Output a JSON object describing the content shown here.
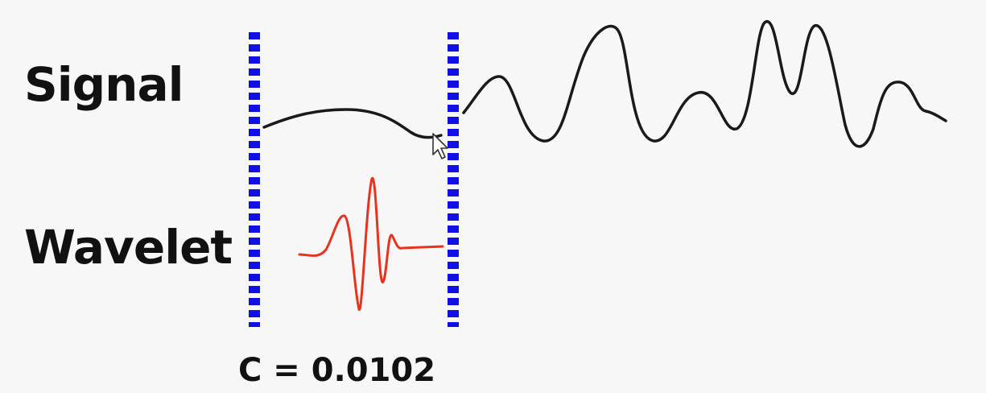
{
  "labels": {
    "signal": "Signal",
    "wavelet": "Wavelet",
    "coefficient": "C = 0.0102"
  },
  "colors": {
    "signal": "#1a1a1a",
    "wavelet": "#e8321e",
    "window": "#1010e6"
  }
}
